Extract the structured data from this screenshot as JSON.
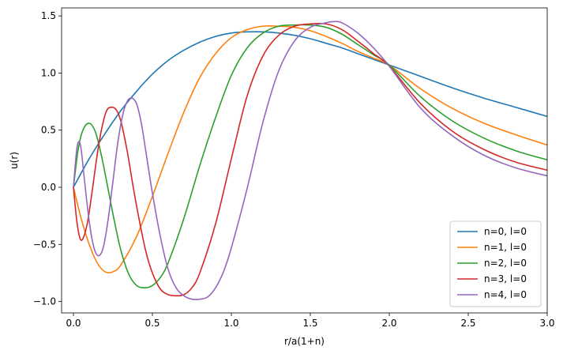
{
  "chart_data": {
    "type": "line",
    "xlabel": "r/a(1+n)",
    "ylabel": "u(r)",
    "xlim": [
      -0.075,
      3.0
    ],
    "ylim": [
      -1.1,
      1.57
    ],
    "xticks": [
      0.0,
      0.5,
      1.0,
      1.5,
      2.0,
      2.5,
      3.0
    ],
    "xtick_labels": [
      "0.0",
      "0.5",
      "1.0",
      "1.5",
      "2.0",
      "2.5",
      "3.0"
    ],
    "yticks": [
      -1.0,
      -0.5,
      0.0,
      0.5,
      1.0,
      1.5
    ],
    "ytick_labels": [
      "−1.0",
      "−0.5",
      "0.0",
      "0.5",
      "1.0",
      "1.5"
    ],
    "grid": false,
    "legend_position": "lower-right",
    "series": [
      {
        "name": "n=0, l=0",
        "color": "#1f77b4",
        "x": [
          0.0,
          0.1,
          0.2,
          0.3,
          0.4,
          0.5,
          0.6,
          0.7,
          0.8,
          0.9,
          1.0,
          1.1,
          1.2,
          1.3,
          1.4,
          1.5,
          1.6,
          1.7,
          1.8,
          1.9,
          2.0,
          2.2,
          2.4,
          2.6,
          2.8,
          3.0
        ],
        "y": [
          0.0,
          0.25,
          0.47,
          0.67,
          0.84,
          0.99,
          1.11,
          1.2,
          1.27,
          1.32,
          1.35,
          1.36,
          1.36,
          1.35,
          1.33,
          1.3,
          1.26,
          1.22,
          1.17,
          1.12,
          1.07,
          0.97,
          0.87,
          0.78,
          0.7,
          0.62
        ]
      },
      {
        "name": "n=1, l=0",
        "color": "#ff7f0e",
        "x": [
          0.0,
          0.05,
          0.1,
          0.15,
          0.2,
          0.25,
          0.3,
          0.4,
          0.5,
          0.6,
          0.7,
          0.8,
          0.9,
          1.0,
          1.1,
          1.2,
          1.3,
          1.4,
          1.5,
          1.6,
          1.7,
          1.8,
          1.9,
          2.0,
          2.2,
          2.4,
          2.6,
          2.8,
          3.0
        ],
        "y": [
          0.0,
          -0.28,
          -0.5,
          -0.66,
          -0.74,
          -0.74,
          -0.68,
          -0.43,
          -0.08,
          0.3,
          0.66,
          0.96,
          1.17,
          1.31,
          1.38,
          1.41,
          1.41,
          1.4,
          1.37,
          1.32,
          1.26,
          1.19,
          1.13,
          1.07,
          0.86,
          0.69,
          0.56,
          0.46,
          0.37
        ]
      },
      {
        "name": "n=2, l=0",
        "color": "#2ca02c",
        "x": [
          0.0,
          0.03,
          0.06,
          0.1,
          0.14,
          0.18,
          0.22,
          0.26,
          0.3,
          0.35,
          0.4,
          0.45,
          0.5,
          0.55,
          0.6,
          0.7,
          0.8,
          0.9,
          1.0,
          1.1,
          1.2,
          1.3,
          1.4,
          1.5,
          1.6,
          1.7,
          1.8,
          1.9,
          2.0,
          2.2,
          2.4,
          2.6,
          2.8,
          3.0
        ],
        "y": [
          0.0,
          0.33,
          0.5,
          0.56,
          0.48,
          0.26,
          -0.02,
          -0.3,
          -0.55,
          -0.76,
          -0.86,
          -0.88,
          -0.86,
          -0.79,
          -0.66,
          -0.27,
          0.19,
          0.61,
          0.98,
          1.22,
          1.35,
          1.41,
          1.42,
          1.42,
          1.4,
          1.34,
          1.25,
          1.16,
          1.07,
          0.79,
          0.58,
          0.43,
          0.32,
          0.24
        ]
      },
      {
        "name": "n=3, l=0",
        "color": "#d62728",
        "x": [
          0.0,
          0.02,
          0.04,
          0.06,
          0.09,
          0.12,
          0.15,
          0.18,
          0.21,
          0.24,
          0.27,
          0.3,
          0.34,
          0.38,
          0.42,
          0.46,
          0.5,
          0.55,
          0.6,
          0.65,
          0.7,
          0.75,
          0.8,
          0.9,
          1.0,
          1.1,
          1.2,
          1.3,
          1.4,
          1.5,
          1.6,
          1.7,
          1.8,
          1.9,
          2.0,
          2.2,
          2.4,
          2.6,
          2.8,
          3.0
        ],
        "y": [
          0.0,
          -0.28,
          -0.44,
          -0.45,
          -0.3,
          -0.02,
          0.28,
          0.52,
          0.67,
          0.7,
          0.68,
          0.58,
          0.32,
          -0.01,
          -0.31,
          -0.57,
          -0.75,
          -0.89,
          -0.94,
          -0.95,
          -0.94,
          -0.88,
          -0.75,
          -0.32,
          0.25,
          0.8,
          1.15,
          1.33,
          1.41,
          1.43,
          1.43,
          1.38,
          1.28,
          1.17,
          1.06,
          0.73,
          0.49,
          0.33,
          0.22,
          0.15
        ]
      },
      {
        "name": "n=4, l=0",
        "color": "#9467bd",
        "x": [
          0.0,
          0.02,
          0.035,
          0.05,
          0.07,
          0.1,
          0.13,
          0.16,
          0.19,
          0.22,
          0.25,
          0.28,
          0.31,
          0.34,
          0.37,
          0.4,
          0.43,
          0.46,
          0.5,
          0.55,
          0.6,
          0.65,
          0.7,
          0.75,
          0.8,
          0.85,
          0.9,
          0.95,
          1.0,
          1.1,
          1.2,
          1.3,
          1.4,
          1.5,
          1.6,
          1.65,
          1.7,
          1.8,
          1.9,
          2.0,
          2.2,
          2.4,
          2.6,
          2.8,
          3.0
        ],
        "y": [
          0.0,
          0.32,
          0.4,
          0.32,
          0.06,
          -0.3,
          -0.53,
          -0.6,
          -0.52,
          -0.28,
          0.05,
          0.38,
          0.62,
          0.75,
          0.78,
          0.73,
          0.56,
          0.3,
          -0.05,
          -0.43,
          -0.72,
          -0.88,
          -0.95,
          -0.98,
          -0.98,
          -0.96,
          -0.88,
          -0.74,
          -0.53,
          -0.01,
          0.57,
          1.02,
          1.28,
          1.4,
          1.44,
          1.45,
          1.44,
          1.35,
          1.22,
          1.06,
          0.69,
          0.45,
          0.28,
          0.17,
          0.1
        ]
      }
    ]
  }
}
